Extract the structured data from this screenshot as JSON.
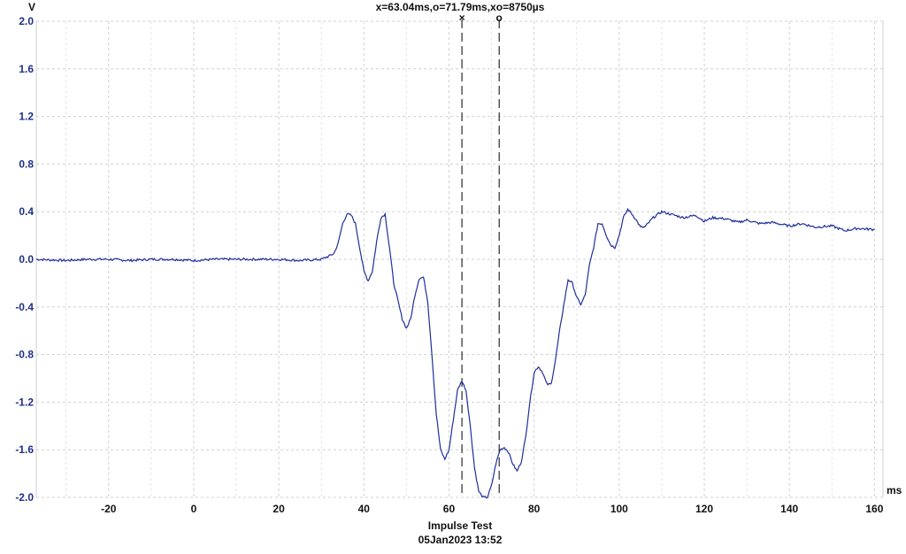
{
  "cursor_readout": "x=63.04ms,o=71.79ms,xo=8750µs",
  "footer": {
    "title": "Impulse Test",
    "timestamp": "05Jan2023  13:52"
  },
  "colors": {
    "trace": "#1f2f9a",
    "axis_text": "#1f2f8a",
    "grid": "#d0d0d0",
    "cursor": "#000000"
  },
  "chart_data": {
    "type": "line",
    "title": "Impulse Test",
    "xlabel": "ms",
    "ylabel": "V",
    "xlim": [
      -37,
      162
    ],
    "ylim": [
      -2.0,
      2.0
    ],
    "xticks": [
      -20,
      0,
      20,
      40,
      60,
      80,
      100,
      120,
      140,
      160
    ],
    "yticks": [
      2.0,
      1.6,
      1.2,
      0.8,
      0.4,
      0.0,
      -0.4,
      -0.8,
      -1.2,
      -1.6,
      -2.0
    ],
    "ytick_labels": [
      "2.0",
      "1.6",
      "1.2",
      "0.8",
      "0.4",
      "0.0",
      "-0.4",
      "-0.8",
      "-1.2",
      "-1.6",
      "-2.0"
    ],
    "grid": true,
    "cursors": [
      {
        "marker": "×",
        "x": 63.04
      },
      {
        "marker": "o",
        "x": 71.79
      }
    ],
    "series": [
      {
        "x": [
          -37,
          -30,
          -25,
          -20,
          -15,
          -10,
          -5,
          0,
          5,
          10,
          15,
          20,
          25,
          30,
          32,
          33,
          34,
          35,
          36,
          37,
          38,
          39,
          40,
          41,
          42,
          43,
          44,
          45,
          46,
          47,
          48,
          49,
          50,
          51,
          52,
          53,
          54,
          55,
          56,
          57,
          58,
          59,
          60,
          61,
          62,
          63,
          64,
          65,
          66,
          67,
          68,
          69,
          70,
          71,
          72,
          73,
          74,
          75,
          76,
          77,
          78,
          79,
          80,
          81,
          82,
          83,
          84,
          85,
          86,
          87,
          88,
          89,
          90,
          91,
          92,
          93,
          94,
          95,
          96,
          97,
          98,
          99,
          100,
          101,
          102,
          103,
          104,
          105,
          106,
          108,
          110,
          112,
          115,
          118,
          120,
          122,
          125,
          128,
          130,
          133,
          136,
          140,
          143,
          146,
          150,
          153,
          156,
          160
        ],
        "y": [
          0.0,
          -0.01,
          0.0,
          0.0,
          -0.01,
          0.0,
          0.0,
          -0.01,
          0.0,
          0.0,
          0.0,
          0.0,
          -0.01,
          0.0,
          0.03,
          0.05,
          0.14,
          0.3,
          0.38,
          0.37,
          0.3,
          0.1,
          -0.1,
          -0.18,
          -0.1,
          0.15,
          0.35,
          0.38,
          0.1,
          -0.2,
          -0.35,
          -0.5,
          -0.58,
          -0.5,
          -0.3,
          -0.16,
          -0.15,
          -0.35,
          -0.8,
          -1.3,
          -1.6,
          -1.68,
          -1.6,
          -1.35,
          -1.1,
          -1.02,
          -1.1,
          -1.4,
          -1.75,
          -1.95,
          -2.0,
          -2.0,
          -1.9,
          -1.72,
          -1.6,
          -1.58,
          -1.62,
          -1.72,
          -1.78,
          -1.7,
          -1.5,
          -1.2,
          -0.95,
          -0.9,
          -0.95,
          -1.05,
          -1.05,
          -0.85,
          -0.6,
          -0.38,
          -0.17,
          -0.2,
          -0.32,
          -0.38,
          -0.3,
          -0.05,
          0.1,
          0.3,
          0.3,
          0.2,
          0.12,
          0.1,
          0.2,
          0.35,
          0.42,
          0.38,
          0.33,
          0.27,
          0.27,
          0.35,
          0.4,
          0.38,
          0.35,
          0.37,
          0.32,
          0.35,
          0.34,
          0.31,
          0.33,
          0.3,
          0.31,
          0.28,
          0.3,
          0.27,
          0.28,
          0.24,
          0.26,
          0.25
        ]
      }
    ]
  }
}
